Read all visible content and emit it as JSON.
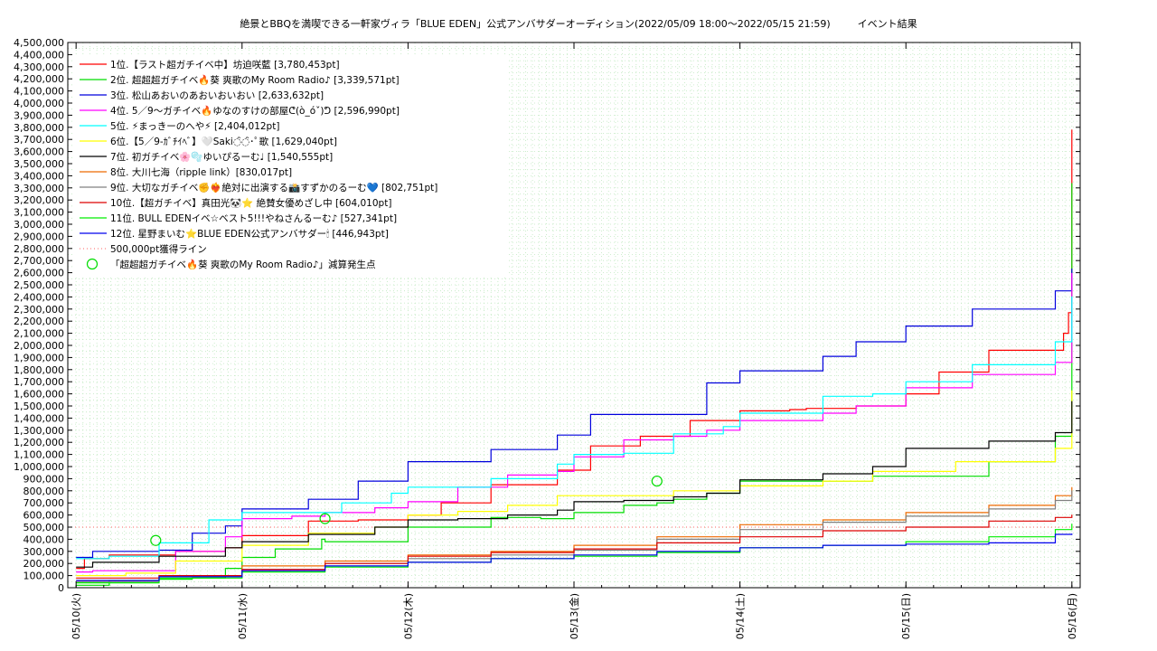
{
  "chart_data": {
    "type": "line",
    "title": "絶景とBBQを満喫できる一軒家ヴィラ「BLUE EDEN」公式アンバサダーオーディション(2022/05/09 18:00〜2022/05/15 21:59)",
    "subtitle": "イベント結果",
    "ylim": [
      0,
      4500000
    ],
    "yticks": [
      0,
      100000,
      200000,
      300000,
      400000,
      500000,
      600000,
      700000,
      800000,
      900000,
      1000000,
      1100000,
      1200000,
      1300000,
      1400000,
      1500000,
      1600000,
      1700000,
      1800000,
      1900000,
      2000000,
      2100000,
      2200000,
      2300000,
      2400000,
      2500000,
      2600000,
      2700000,
      2800000,
      2900000,
      3000000,
      3100000,
      3200000,
      3300000,
      3400000,
      3500000,
      3600000,
      3700000,
      3800000,
      3900000,
      4000000,
      4100000,
      4200000,
      4300000,
      4400000,
      4500000
    ],
    "ytick_labels": [
      "0",
      "100,000",
      "200,000",
      "300,000",
      "400,000",
      "500,000",
      "600,000",
      "700,000",
      "800,000",
      "900,000",
      "1,000,000",
      "1,100,000",
      "1,200,000",
      "1,300,000",
      "1,400,000",
      "1,500,000",
      "1,600,000",
      "1,700,000",
      "1,800,000",
      "1,900,000",
      "2,000,000",
      "2,100,000",
      "2,200,000",
      "2,300,000",
      "2,400,000",
      "2,500,000",
      "2,600,000",
      "2,700,000",
      "2,800,000",
      "2,900,000",
      "3,000,000",
      "3,100,000",
      "3,200,000",
      "3,300,000",
      "3,400,000",
      "3,500,000",
      "3,600,000",
      "3,700,000",
      "3,800,000",
      "3,900,000",
      "4,000,000",
      "4,100,000",
      "4,200,000",
      "4,300,000",
      "4,400,000",
      "4,500,000"
    ],
    "xlim": [
      -0.05,
      6.05
    ],
    "xticks": [
      0,
      1,
      2,
      3,
      4,
      5,
      6
    ],
    "xtick_labels": [
      "05/10(火)",
      "05/11(水)",
      "05/12(木)",
      "05/13(金)",
      "05/14(土)",
      "05/15(日)",
      "05/16(月)"
    ],
    "grid": true,
    "legend_position": "top-left",
    "threshold": {
      "label": "500,000pt獲得ライン",
      "value": 500000,
      "color": "#ff6060"
    },
    "markers": {
      "label": "「超超超ガチイベ🔥葵 爽歌のMy Room Radio♪」減算発生点",
      "color": "#00dd00",
      "points": [
        [
          0.48,
          390000
        ],
        [
          1.5,
          570000
        ],
        [
          3.5,
          880000
        ]
      ]
    },
    "series": [
      {
        "name": " 1位.【ラスト超ガチイベ中】坊迫咲藍 [3,780,453pt]",
        "color": "#ff0000",
        "x": [
          0,
          0.05,
          0.2,
          0.6,
          0.9,
          1.0,
          1.4,
          1.7,
          2.0,
          2.2,
          2.5,
          2.9,
          3.1,
          3.4,
          3.7,
          4.0,
          4.3,
          4.4,
          4.7,
          5.0,
          5.2,
          5.5,
          5.95,
          5.98,
          6.0
        ],
        "y": [
          160000,
          240000,
          270000,
          300000,
          330000,
          430000,
          550000,
          560000,
          600000,
          700000,
          850000,
          970000,
          1170000,
          1250000,
          1380000,
          1460000,
          1470000,
          1480000,
          1500000,
          1600000,
          1780000,
          1960000,
          2100000,
          2270000,
          3780453
        ]
      },
      {
        "name": " 2位. 超超超ガチイベ🔥葵 爽歌のMy Room Radio♪ [3,339,571pt]",
        "color": "#00dd00",
        "x": [
          0,
          0.2,
          0.5,
          0.7,
          0.9,
          1.0,
          1.2,
          1.48,
          1.5,
          2.0,
          2.5,
          2.8,
          3.0,
          3.3,
          3.5,
          3.6,
          3.8,
          4.0,
          4.3,
          4.8,
          5.5,
          5.9,
          6.0
        ],
        "y": [
          20000,
          60000,
          70000,
          80000,
          160000,
          250000,
          320000,
          400000,
          380000,
          500000,
          580000,
          570000,
          620000,
          680000,
          700000,
          730000,
          780000,
          880000,
          880000,
          920000,
          1040000,
          1250000,
          3339571
        ]
      },
      {
        "name": " 3位. 松山あおいのあおいおいおい [2,633,632pt]",
        "color": "#0000dd",
        "x": [
          0,
          0.1,
          0.5,
          0.7,
          0.9,
          1.0,
          1.4,
          1.7,
          2.0,
          2.5,
          2.9,
          3.1,
          3.4,
          3.8,
          4.0,
          4.5,
          4.7,
          5.0,
          5.4,
          5.9,
          6.0
        ],
        "y": [
          250000,
          300000,
          310000,
          450000,
          510000,
          650000,
          730000,
          880000,
          1040000,
          1140000,
          1260000,
          1430000,
          1430000,
          1690000,
          1790000,
          1910000,
          2030000,
          2160000,
          2300000,
          2450000,
          2633632
        ]
      },
      {
        "name": " 4位. 5／9〜ガチイベ🔥ゆなのすけの部屋ᕦ(ò_óˇ)ᕤ [2,596,990pt]",
        "color": "#ff00ff",
        "x": [
          0,
          0.1,
          0.6,
          0.9,
          1.0,
          1.3,
          1.5,
          1.8,
          2.0,
          2.3,
          2.6,
          2.9,
          3.0,
          3.3,
          3.6,
          3.8,
          4.0,
          4.5,
          4.7,
          5.0,
          5.4,
          5.9,
          6.0
        ],
        "y": [
          130000,
          140000,
          300000,
          420000,
          570000,
          590000,
          620000,
          660000,
          710000,
          830000,
          930000,
          960000,
          1080000,
          1220000,
          1250000,
          1300000,
          1380000,
          1440000,
          1500000,
          1650000,
          1760000,
          1860000,
          2596990
        ]
      },
      {
        "name": " 5位. ⚡まっきーのへや⚡ [2,404,012pt]",
        "color": "#00ffff",
        "x": [
          0,
          0.2,
          0.5,
          0.8,
          1.0,
          1.3,
          1.6,
          1.9,
          2.0,
          2.5,
          2.9,
          3.0,
          3.3,
          3.6,
          3.9,
          4.0,
          4.5,
          4.8,
          5.0,
          5.4,
          5.9,
          6.0
        ],
        "y": [
          240000,
          260000,
          370000,
          560000,
          620000,
          620000,
          700000,
          780000,
          830000,
          900000,
          1020000,
          1100000,
          1110000,
          1270000,
          1330000,
          1440000,
          1580000,
          1600000,
          1700000,
          1840000,
          2030000,
          2404012
        ]
      },
      {
        "name": " 6位.【5／9-ｶﾞﾁｲﾍﾞ】🤍Saki◌̑◌̑･ﾟ歌 [1,629,040pt]",
        "color": "#ffff00",
        "x": [
          0,
          0.3,
          0.6,
          1.0,
          1.4,
          1.8,
          2.0,
          2.3,
          2.6,
          2.9,
          3.0,
          3.3,
          3.6,
          4.0,
          4.5,
          4.8,
          5.3,
          5.9,
          6.0
        ],
        "y": [
          100000,
          120000,
          220000,
          350000,
          450000,
          500000,
          600000,
          630000,
          680000,
          760000,
          760000,
          760000,
          800000,
          840000,
          880000,
          960000,
          1040000,
          1150000,
          1629040
        ]
      },
      {
        "name": " 7位. 初ガチイベ🌸🫧ゆいぴるーむ♩ [1,540,555pt]",
        "color": "#000000",
        "x": [
          0,
          0.1,
          0.5,
          0.9,
          1.0,
          1.4,
          1.8,
          2.0,
          2.3,
          2.6,
          2.9,
          3.0,
          3.3,
          3.6,
          3.8,
          4.0,
          4.5,
          4.8,
          5.0,
          5.5,
          5.9,
          6.0
        ],
        "y": [
          170000,
          210000,
          260000,
          330000,
          380000,
          440000,
          500000,
          560000,
          570000,
          600000,
          640000,
          710000,
          720000,
          750000,
          780000,
          890000,
          940000,
          1000000,
          1150000,
          1210000,
          1280000,
          1540555
        ]
      },
      {
        "name": " 8位. 大川七海（ripple link）[830,017pt]",
        "color": "#ee6a00",
        "x": [
          0,
          0.5,
          1.0,
          1.5,
          2.0,
          2.5,
          3.0,
          3.5,
          4.0,
          4.5,
          5.0,
          5.5,
          5.9,
          6.0
        ],
        "y": [
          60000,
          100000,
          180000,
          220000,
          270000,
          300000,
          350000,
          420000,
          520000,
          560000,
          620000,
          680000,
          760000,
          830017
        ]
      },
      {
        "name": " 9位. 大切なガチイベ✊❤️‍🔥絶対に出演する📸すずかのるーむ💙 [802,751pt]",
        "color": "#808080",
        "x": [
          0,
          0.5,
          1.0,
          1.5,
          2.0,
          2.5,
          3.0,
          3.5,
          4.0,
          4.5,
          5.0,
          5.5,
          5.9,
          6.0
        ],
        "y": [
          50000,
          90000,
          150000,
          200000,
          240000,
          270000,
          310000,
          400000,
          480000,
          540000,
          590000,
          650000,
          720000,
          802751
        ]
      },
      {
        "name": "10位.【超ガチイベ】真田光🐼⭐ 絶賛女優めざし中 [604,010pt]",
        "color": "#dd0000",
        "x": [
          0,
          0.5,
          1.0,
          1.5,
          2.0,
          2.5,
          3.0,
          3.5,
          4.0,
          4.5,
          5.0,
          5.5,
          5.9,
          6.0
        ],
        "y": [
          80000,
          100000,
          150000,
          200000,
          260000,
          290000,
          320000,
          370000,
          420000,
          470000,
          500000,
          550000,
          580000,
          604010
        ]
      },
      {
        "name": "11位. BULL EDENイベ☆ベスト5!!!やねさんるーむ♪ [527,341pt]",
        "color": "#00ee00",
        "x": [
          0,
          0.5,
          1.0,
          1.5,
          2.0,
          2.5,
          3.0,
          3.5,
          4.0,
          4.5,
          5.0,
          5.5,
          5.9,
          6.0
        ],
        "y": [
          40000,
          80000,
          130000,
          170000,
          210000,
          240000,
          260000,
          290000,
          330000,
          350000,
          380000,
          420000,
          480000,
          527341
        ]
      },
      {
        "name": "12位. 星野まいむ⭐BLUE EDEN公式アンバサダー🕯 [446,943pt]",
        "color": "#0000ee",
        "x": [
          0,
          0.5,
          1.0,
          1.5,
          2.0,
          2.5,
          3.0,
          3.5,
          4.0,
          4.5,
          5.0,
          5.5,
          5.9,
          6.0
        ],
        "y": [
          60000,
          90000,
          140000,
          180000,
          210000,
          240000,
          270000,
          300000,
          330000,
          350000,
          360000,
          370000,
          440000,
          446943
        ]
      }
    ]
  }
}
